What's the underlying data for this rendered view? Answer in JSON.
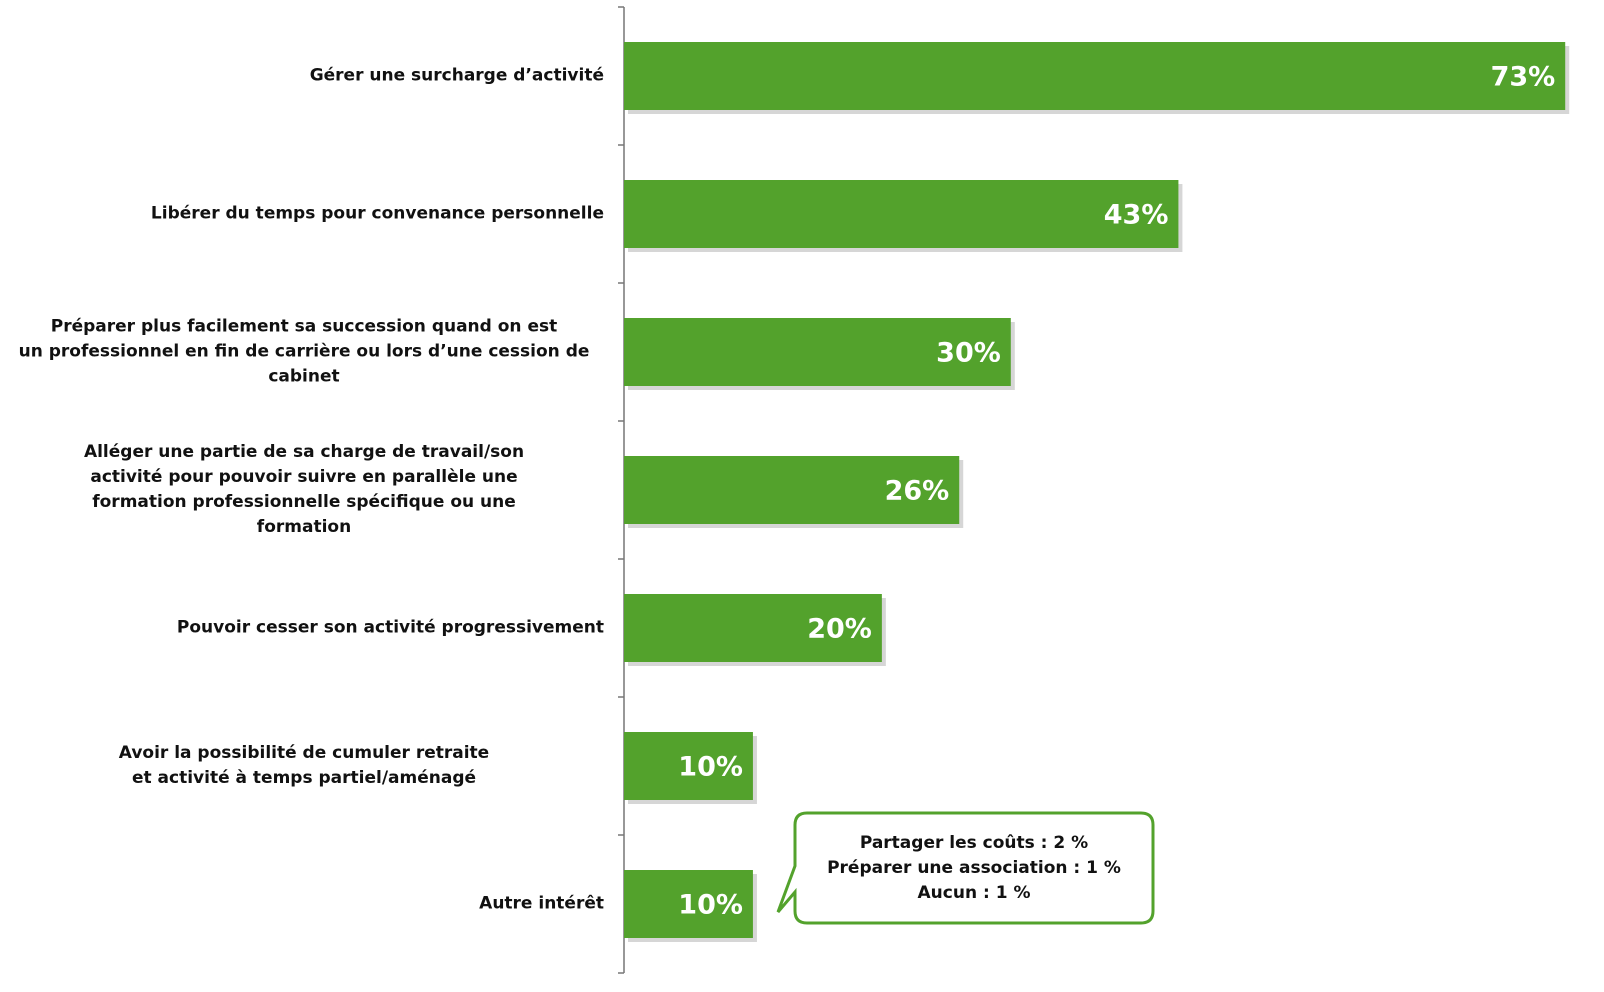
{
  "chart_data": {
    "type": "bar",
    "orientation": "horizontal",
    "categories": [
      "Gérer une surcharge d’activité",
      "Libérer du temps pour convenance personnelle",
      "Préparer plus facilement sa succession quand on est\nun professionnel en fin de carrière ou lors d’une cession de\ncabinet",
      "Alléger une partie de sa charge de travail/son\nactivité pour pouvoir suivre en parallèle une\nformation professionnelle spécifique ou une\nformation",
      "Pouvoir cesser son activité progressivement",
      "Avoir la possibilité de cumuler retraite\net activité à temps partiel/aménagé",
      "Autre intérêt"
    ],
    "values": [
      73,
      43,
      30,
      26,
      20,
      10,
      10
    ],
    "value_labels": [
      "73%",
      "43%",
      "30%",
      "26%",
      "20%",
      "10%",
      "10%"
    ],
    "color": "#53a22c",
    "xlim": [
      0,
      75
    ],
    "annotation": "Partager les coûts : 2 %\nPréparer une association : 1 %\nAucun : 1 %"
  }
}
